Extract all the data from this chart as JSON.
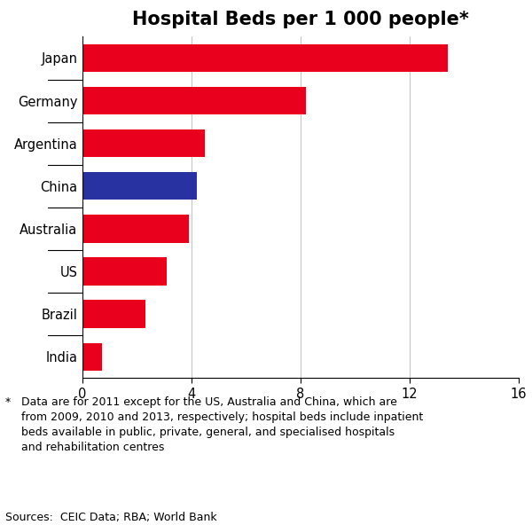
{
  "title": "Hospital Beds per 1 000 people*",
  "categories": [
    "India",
    "Brazil",
    "US",
    "Australia",
    "China",
    "Argentina",
    "Germany",
    "Japan"
  ],
  "values": [
    0.7,
    2.3,
    3.1,
    3.9,
    4.2,
    4.5,
    8.2,
    13.4
  ],
  "colors": [
    "#e8001c",
    "#e8001c",
    "#e8001c",
    "#e8001c",
    "#2832a0",
    "#e8001c",
    "#e8001c",
    "#e8001c"
  ],
  "xlim": [
    0,
    16
  ],
  "xticks": [
    0,
    4,
    8,
    12,
    16
  ],
  "footnote_star": "*",
  "footnote_text": "   Data are for 2011 except for the US, Australia and China, which are\n   from 2009, 2010 and 2013, respectively; hospital beds include inpatient\n   beds available in public, private, general, and specialised hospitals\n   and rehabilitation centres",
  "sources": "Sources:  CEIC Data; RBA; World Bank",
  "bar_height": 0.65,
  "background_color": "#ffffff",
  "title_fontsize": 15,
  "label_fontsize": 10.5,
  "tick_fontsize": 10.5,
  "footnote_fontsize": 9.0
}
